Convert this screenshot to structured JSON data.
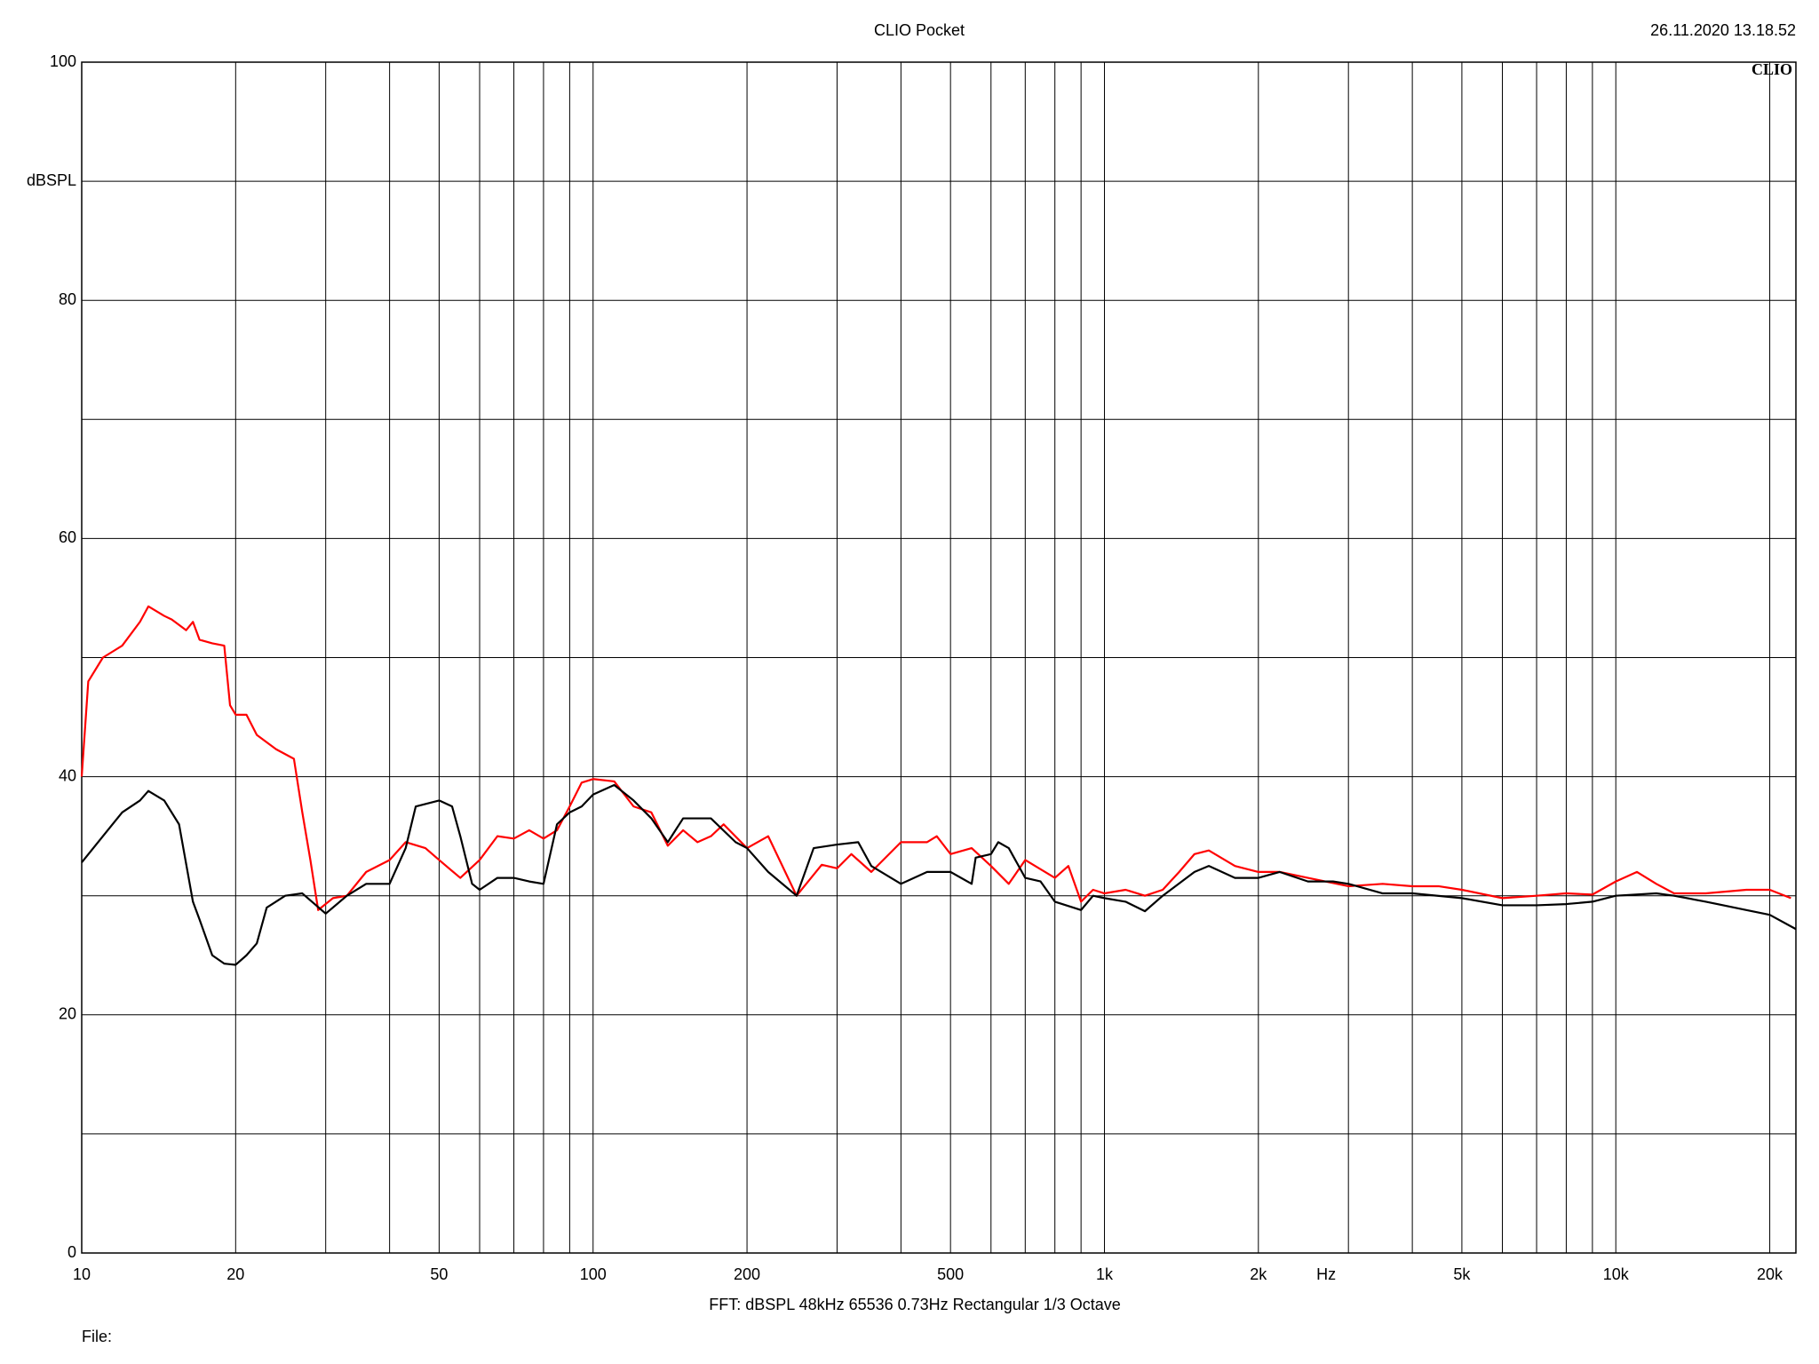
{
  "chart_data": {
    "type": "line",
    "title": "CLIO Pocket",
    "timestamp": "26.11.2020 13.18.52",
    "logo": "CLIO",
    "ylabel": "dBSPL",
    "xlabel": "Hz",
    "footer": "FFT:  dBSPL  48kHz   65536  0.73Hz  Rectangular  1/3 Octave",
    "file_label": "File:",
    "xlog": true,
    "grid": true,
    "xlim": [
      10,
      22500
    ],
    "ylim": [
      0,
      100
    ],
    "yticks": [
      0,
      20,
      40,
      60,
      80,
      100
    ],
    "yminor": [
      10,
      30,
      50,
      70,
      90
    ],
    "xticks": [
      10,
      20,
      50,
      100,
      200,
      500,
      {
        "value": 1000,
        "label": "1k"
      },
      {
        "value": 2000,
        "label": "2k"
      },
      {
        "value": 5000,
        "label": "5k"
      },
      {
        "value": 10000,
        "label": "10k"
      },
      {
        "value": 20000,
        "label": "20k"
      }
    ],
    "xminor": [
      30,
      40,
      60,
      70,
      80,
      90,
      300,
      400,
      600,
      700,
      800,
      900,
      3000,
      4000,
      6000,
      7000,
      8000,
      9000
    ],
    "series": [
      {
        "color": "#ff0000",
        "x": [
          10,
          10.3,
          11,
          12,
          13,
          13.5,
          14.5,
          15,
          16,
          16.5,
          17,
          18,
          19,
          19.5,
          20,
          21,
          22,
          24,
          26,
          27,
          28,
          29,
          31,
          33,
          36,
          40,
          43,
          47,
          50,
          55,
          60,
          65,
          70,
          75,
          80,
          85,
          90,
          95,
          100,
          110,
          120,
          130,
          140,
          150,
          160,
          170,
          180,
          200,
          220,
          250,
          280,
          300,
          320,
          350,
          400,
          450,
          470,
          500,
          550,
          600,
          650,
          700,
          800,
          850,
          900,
          950,
          1000,
          1100,
          1200,
          1300,
          1400,
          1500,
          1600,
          1800,
          2000,
          2200,
          2500,
          3000,
          3500,
          4000,
          4500,
          5000,
          6000,
          7000,
          8000,
          9000,
          10000,
          11000,
          12000,
          13000,
          15000,
          18000,
          20000,
          22000
        ],
        "values": [
          40,
          48,
          50,
          51,
          53,
          54.3,
          53.5,
          53.2,
          52.3,
          53,
          51.5,
          51.2,
          51,
          46,
          45.2,
          45.2,
          43.5,
          42.3,
          41.5,
          37,
          33,
          28.8,
          29.8,
          30,
          32,
          33,
          34.5,
          34,
          33,
          31.5,
          33,
          35,
          34.8,
          35.5,
          34.8,
          35.5,
          37.5,
          39.5,
          39.8,
          39.6,
          37.5,
          37,
          34.2,
          35.5,
          34.5,
          35,
          36,
          34,
          35,
          30,
          32.6,
          32.3,
          33.5,
          32,
          34.5,
          34.5,
          35,
          33.5,
          34,
          32.5,
          31,
          33,
          31.5,
          32.5,
          29.5,
          30.5,
          30.2,
          30.5,
          30,
          30.5,
          32,
          33.5,
          33.8,
          32.5,
          32,
          32,
          31.5,
          30.8,
          31,
          30.8,
          30.8,
          30.5,
          29.8,
          30,
          30.2,
          30.1,
          31.2,
          32,
          31,
          30.2,
          30.2,
          30.5,
          30.5,
          29.8
        ]
      },
      {
        "color": "#000000",
        "x": [
          10,
          11,
          12,
          13,
          13.5,
          14.5,
          15.5,
          16.5,
          17,
          18,
          19,
          20,
          21,
          22,
          23,
          25,
          27,
          30,
          33,
          36,
          40,
          43,
          45,
          50,
          53,
          55,
          58,
          60,
          65,
          70,
          75,
          80,
          85,
          90,
          95,
          100,
          110,
          120,
          130,
          140,
          150,
          170,
          190,
          200,
          220,
          250,
          270,
          300,
          330,
          350,
          400,
          450,
          500,
          550,
          560,
          600,
          620,
          650,
          700,
          750,
          800,
          900,
          950,
          1000,
          1100,
          1200,
          1300,
          1500,
          1600,
          1800,
          2000,
          2200,
          2500,
          2800,
          3000,
          3500,
          4000,
          5000,
          6000,
          7000,
          8000,
          9000,
          10000,
          12000,
          13000,
          15000,
          18000,
          20000,
          22500
        ],
        "values": [
          32.8,
          35,
          37,
          38,
          38.8,
          38,
          36,
          29.5,
          28,
          25,
          24.3,
          24.2,
          25,
          26,
          29,
          30,
          30.2,
          28.5,
          30,
          31,
          31,
          34,
          37.5,
          38,
          37.5,
          35,
          31,
          30.5,
          31.5,
          31.5,
          31.2,
          31,
          36,
          37,
          37.5,
          38.5,
          39.3,
          38,
          36.5,
          34.5,
          36.5,
          36.5,
          34.5,
          34,
          32,
          30,
          34,
          34.3,
          34.5,
          32.5,
          31,
          32,
          32,
          31,
          33.2,
          33.5,
          34.5,
          34,
          31.5,
          31.2,
          29.5,
          28.8,
          30,
          29.8,
          29.5,
          28.7,
          30,
          32,
          32.5,
          31.5,
          31.5,
          32,
          31.2,
          31.2,
          31,
          30.2,
          30.2,
          29.8,
          29.2,
          29.2,
          29.3,
          29.5,
          30,
          30.2,
          30,
          29.5,
          28.8,
          28.4,
          27.2
        ]
      }
    ]
  }
}
